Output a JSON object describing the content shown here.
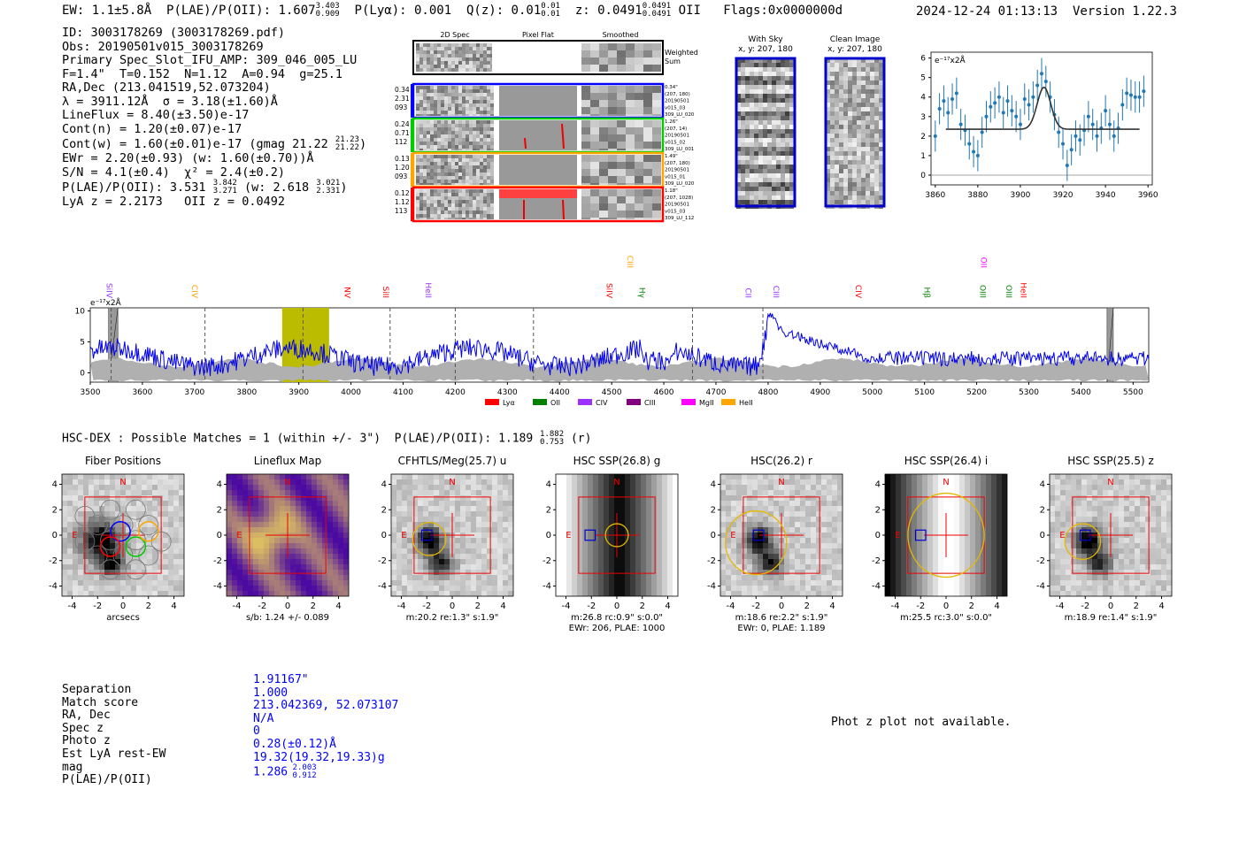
{
  "header": {
    "ew": "EW: 1.1±5.8Å",
    "plae_label": "P(LAE)/P(OII): 1.607",
    "plae_hi": "3.403",
    "plae_lo": "0.909",
    "plya": "P(Lyα): 0.001",
    "qz_label": "Q(z): 0.01",
    "qz_hi": "0.01",
    "qz_lo": "0.01",
    "z_label": "z: 0.0491",
    "z_hi": "0.0491",
    "z_lo": "0.0491",
    "z_line": "OII",
    "flags": "Flags:0x0000000d",
    "timestamp": "2024-12-24 01:13:13",
    "version": "Version 1.22.3"
  },
  "info": {
    "id": "ID: 3003178269 (3003178269.pdf)",
    "obs": "Obs: 20190501v015_3003178269",
    "primary": "Primary Spec_Slot_IFU_AMP: 309_046_005_LU",
    "f_line": "F=1.4\"  T=0.152  N=1.12  A=0.94  g=25.1",
    "radec": "RA,Dec (213.041519,52.073204)",
    "lambda": "λ = 3911.12Å  σ = 3.18(±1.60)Å",
    "lineflux": "LineFlux = 8.40(±3.50)e-17",
    "contn": "Cont(n) = 1.20(±0.07)e-17",
    "contw": "Cont(w) = 1.60(±0.01)e-17 (gmag 21.22",
    "contw_hi": "21.23",
    "contw_lo": "21.22",
    "contw_close": ")",
    "ewr": "EWr = 2.20(±0.93) (w: 1.60(±0.70))Å",
    "sn": "S/N = 4.1(±0.4)  χ² = 2.4(±0.2)",
    "plae": "P(LAE)/P(OII): 3.531",
    "plae_hi": "3.842",
    "plae_lo": "3.271",
    "plae_w": "(w: 2.618",
    "plae_w_hi": "3.021",
    "plae_w_lo": "2.331",
    "plae_w_close": ")",
    "lyaz": "LyA z = 2.2173   OII z = 0.0492"
  },
  "spec2d": {
    "col_titles": [
      "2D Spec",
      "Pixel Flat",
      "Smoothed"
    ],
    "weighted_label": [
      "Weighted",
      "Sum"
    ],
    "rows": [
      {
        "vals": [
          "0.34",
          "2.31",
          "093"
        ],
        "color": "#0000ff",
        "notes": [
          "0.34\"",
          "(207, 180)",
          "20190501",
          "v015_03",
          "309_LU_020"
        ]
      },
      {
        "vals": [
          "0.24",
          "0.71",
          "112"
        ],
        "color": "#00cc00",
        "notes": [
          "1.26\"",
          "(207, 14)",
          "20190501",
          "v015_02",
          "309_LU_001"
        ]
      },
      {
        "vals": [
          "0.13",
          "1.20",
          "093"
        ],
        "color": "#ffa500",
        "notes": [
          "1.49\"",
          "(207, 180)",
          "20190501",
          "v015_01",
          "309_LU_020"
        ]
      },
      {
        "vals": [
          "0.12",
          "1.12",
          "113"
        ],
        "color": "#ff0000",
        "notes": [
          "1.18\"",
          "(207, 1028)",
          "20190501",
          "v015_03",
          "309_LU_112"
        ]
      }
    ]
  },
  "cutouts": {
    "with_sky": [
      "With Sky",
      "x, y: 207, 180"
    ],
    "clean": [
      "Clean Image",
      "x, y: 207, 180"
    ]
  },
  "chart_data": [
    {
      "type": "scatter",
      "title": "",
      "ylabel": "e⁻¹⁷x2Å",
      "xlim": [
        3858,
        3962
      ],
      "ylim": [
        -0.5,
        6.3
      ],
      "xticks": [
        3860,
        3880,
        3900,
        3920,
        3940,
        3960
      ],
      "yticks": [
        0,
        1,
        2,
        3,
        4,
        5,
        6
      ],
      "x": [
        3860,
        3862,
        3864,
        3866,
        3868,
        3870,
        3872,
        3874,
        3876,
        3878,
        3880,
        3882,
        3884,
        3886,
        3888,
        3890,
        3892,
        3894,
        3896,
        3898,
        3900,
        3902,
        3904,
        3906,
        3908,
        3910,
        3912,
        3914,
        3916,
        3918,
        3920,
        3922,
        3924,
        3926,
        3928,
        3930,
        3932,
        3934,
        3936,
        3938,
        3940,
        3942,
        3944,
        3946,
        3948,
        3950,
        3952,
        3954,
        3956,
        3958
      ],
      "y": [
        2.0,
        3.4,
        3.8,
        3.2,
        3.9,
        4.2,
        2.6,
        2.3,
        1.6,
        1.2,
        1.0,
        2.2,
        3.0,
        3.5,
        3.7,
        4.0,
        3.2,
        3.8,
        3.3,
        3.0,
        2.6,
        3.9,
        3.6,
        4.0,
        4.6,
        5.2,
        4.8,
        4.0,
        3.1,
        2.2,
        1.6,
        0.5,
        1.3,
        2.0,
        1.8,
        2.3,
        3.0,
        2.6,
        2.0,
        2.4,
        3.3,
        2.6,
        2.0,
        2.4,
        3.6,
        4.2,
        4.1,
        4.0,
        4.0,
        4.3
      ],
      "yerr": 0.8,
      "model": {
        "continuum": 2.35,
        "center": 3911.1,
        "sigma": 3.2,
        "amplitude": 2.15,
        "x_range": [
          3865,
          3956
        ]
      }
    },
    {
      "type": "line",
      "ylabel": "e⁻¹⁷x2Å",
      "xlim": [
        3500,
        5530
      ],
      "ylim": [
        -1.5,
        10.5
      ],
      "xticks": [
        3500,
        3600,
        3700,
        3800,
        3900,
        4000,
        4100,
        4200,
        4300,
        4400,
        4500,
        4600,
        4700,
        4800,
        4900,
        5000,
        5100,
        5200,
        5300,
        5400,
        5500
      ],
      "yticks": [
        0,
        5,
        10
      ],
      "highlight_band": [
        3868,
        3958
      ],
      "masked_bands": [
        [
          3535,
          3553
        ],
        [
          5450,
          5462
        ]
      ],
      "dashed_lines": [
        3540,
        3720,
        3908,
        4075,
        4200,
        4350,
        4655,
        4790
      ],
      "line_labels": [
        {
          "name": "SiIV",
          "x": 3531,
          "color": "#9b30ff",
          "level": 0
        },
        {
          "name": "CIV",
          "x": 3695,
          "color": "#ffa500",
          "level": 0
        },
        {
          "name": "NV",
          "x": 3988,
          "color": "#ff0000",
          "level": 0
        },
        {
          "name": "SiII",
          "x": 4062,
          "color": "#ff0000",
          "level": 0
        },
        {
          "name": "HeII",
          "x": 4143,
          "color": "#9b30ff",
          "level": 0
        },
        {
          "name": "SiIV",
          "x": 4490,
          "color": "#ff0000",
          "level": 0
        },
        {
          "name": "CIII",
          "x": 4530,
          "color": "#ffa500",
          "level": 1
        },
        {
          "name": "Hγ",
          "x": 4553,
          "color": "#008000",
          "level": 0
        },
        {
          "name": "CII",
          "x": 4757,
          "color": "#9b30ff",
          "level": 0
        },
        {
          "name": "CIII",
          "x": 4810,
          "color": "#9b30ff",
          "level": 0
        },
        {
          "name": "CIV",
          "x": 4968,
          "color": "#ff0000",
          "level": 0
        },
        {
          "name": "Hβ",
          "x": 5100,
          "color": "#008000",
          "level": 0
        },
        {
          "name": "OII",
          "x": 5208,
          "color": "#ff00ff",
          "level": 1
        },
        {
          "name": "OIII",
          "x": 5207,
          "color": "#008000",
          "level": 0
        },
        {
          "name": "OIII",
          "x": 5257,
          "color": "#008000",
          "level": 0
        },
        {
          "name": "HeII",
          "x": 5285,
          "color": "#ff0000",
          "level": 0
        }
      ],
      "legend": [
        {
          "name": "Lyα",
          "color": "#ff0000"
        },
        {
          "name": "OII",
          "color": "#008000"
        },
        {
          "name": "CIV",
          "color": "#9b30ff"
        },
        {
          "name": "CIII",
          "color": "#800080"
        },
        {
          "name": "MgII",
          "color": "#ff00ff"
        },
        {
          "name": "HeII",
          "color": "#ffa500"
        }
      ],
      "legend_loc": "bottom-center"
    }
  ],
  "hsc": {
    "line": "HSC-DEX : Possible Matches = 1 (within +/- 3\")  P(LAE)/P(OII): 1.189",
    "hi": "1.882",
    "lo": "0.753",
    "tail": "(r)",
    "tick_labels": [
      "-4",
      "-2",
      "0",
      "2",
      "4"
    ],
    "north": "N",
    "east": "E",
    "panels": [
      {
        "title": "Fiber Positions",
        "cap1": "arcsecs",
        "cap2": ""
      },
      {
        "title": "Lineflux Map",
        "cap1": "s/b: 1.24 +/- 0.089",
        "cap2": ""
      },
      {
        "title": "CFHTLS/Meg(25.7) u",
        "cap1": "m:20.2  re:1.3\"  s:1.9\"",
        "cap2": ""
      },
      {
        "title": "HSC SSP(26.8) g",
        "cap1": "m:26.8 rc:0.9\"  s:0.0\"",
        "cap2": "EWr: 206, PLAE: 1000"
      },
      {
        "title": "HSC(26.2) r",
        "cap1": "m:18.6  re:2.2\"  s:1.9\"",
        "cap2": "EWr: 0, PLAE: 1.189"
      },
      {
        "title": "HSC SSP(26.4) i",
        "cap1": "m:25.5 rc:3.0\"  s:0.0\"",
        "cap2": ""
      },
      {
        "title": "HSC SSP(25.5) z",
        "cap1": "m:18.9  re:1.4\"  s:1.9\"",
        "cap2": ""
      }
    ]
  },
  "bottom": {
    "rows": [
      {
        "label": "Separation",
        "value": "1.91167\""
      },
      {
        "label": "Match score",
        "value": "1.000"
      },
      {
        "label": "RA, Dec",
        "value": "213.042369, 52.073107"
      },
      {
        "label": "Spec z",
        "value": "N/A"
      },
      {
        "label": "Photo z",
        "value": "0"
      },
      {
        "label": "Est LyA rest-EW",
        "value": "0.28(±0.12)Å"
      },
      {
        "label": "mag",
        "value": "19.32(19.32,19.33)g"
      },
      {
        "label": "P(LAE)/P(OII)",
        "value": "1.286"
      }
    ],
    "plae_hi": "2.003",
    "plae_lo": "0.912",
    "photz_msg": "Phot z plot not available."
  },
  "colors": {
    "blue": "#0000ff",
    "green": "#00cc00",
    "orange": "#ffa500",
    "red": "#ff0000",
    "errorbar": "#1f77b4",
    "band": "#bbbb00",
    "gray": "#b0b0b0"
  }
}
